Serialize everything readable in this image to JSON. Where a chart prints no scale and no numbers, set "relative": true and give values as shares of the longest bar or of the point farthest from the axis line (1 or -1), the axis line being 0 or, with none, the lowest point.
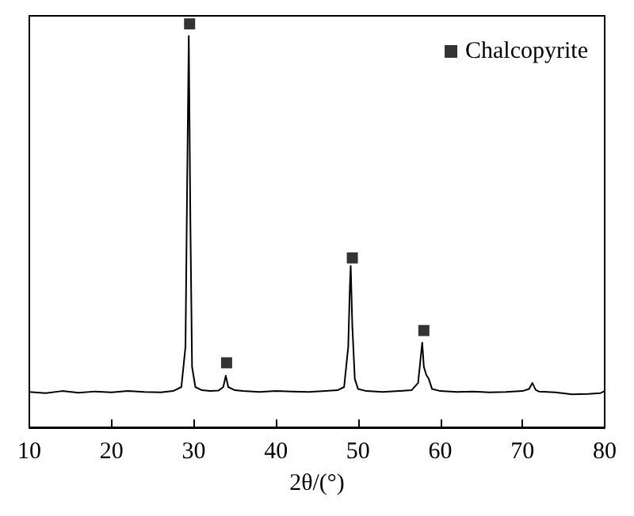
{
  "chart_data": {
    "type": "line",
    "relative": true,
    "xlabel": "2θ/(°)",
    "xlim": [
      10,
      80
    ],
    "xticks": [
      10,
      20,
      30,
      40,
      50,
      60,
      70,
      80
    ],
    "tick_labels": "x",
    "grid": false,
    "legend": "top right",
    "series": [
      {
        "type": "line",
        "color": "#000000",
        "marker": "none",
        "x": [
          10,
          12,
          14,
          16,
          18,
          20,
          22,
          24,
          26,
          27.5,
          28.5,
          29.0,
          29.2,
          29.4,
          29.6,
          29.8,
          30.2,
          31,
          32,
          33,
          33.6,
          33.9,
          34.2,
          35,
          36,
          38,
          40,
          42,
          44,
          46,
          47.5,
          48.3,
          48.6,
          48.8,
          49.0,
          49.1,
          49.3,
          49.6,
          50,
          51,
          53,
          55,
          56.5,
          57.3,
          57.6,
          57.8,
          58.0,
          58.3,
          58.6,
          59,
          60,
          62,
          64,
          66,
          68,
          70,
          70.8,
          71.2,
          71.6,
          72,
          74,
          76,
          78,
          79.5,
          80
        ],
        "values": [
          0.088,
          0.085,
          0.09,
          0.086,
          0.089,
          0.087,
          0.09,
          0.088,
          0.087,
          0.09,
          0.1,
          0.2,
          0.6,
          0.97,
          0.5,
          0.15,
          0.1,
          0.092,
          0.09,
          0.091,
          0.1,
          0.128,
          0.1,
          0.092,
          0.09,
          0.088,
          0.09,
          0.089,
          0.088,
          0.09,
          0.092,
          0.1,
          0.16,
          0.2,
          0.35,
          0.4,
          0.25,
          0.12,
          0.095,
          0.09,
          0.088,
          0.09,
          0.092,
          0.11,
          0.17,
          0.21,
          0.15,
          0.13,
          0.12,
          0.095,
          0.09,
          0.088,
          0.089,
          0.087,
          0.088,
          0.09,
          0.095,
          0.11,
          0.093,
          0.089,
          0.087,
          0.082,
          0.083,
          0.085,
          0.09
        ]
      },
      {
        "type": "scatter",
        "name": "Chalcopyrite",
        "color": "#000000",
        "marker": "square",
        "x": [
          29.5,
          34,
          49.3,
          58
        ],
        "values": [
          1,
          0.16,
          0.42,
          0.24
        ]
      }
    ]
  }
}
